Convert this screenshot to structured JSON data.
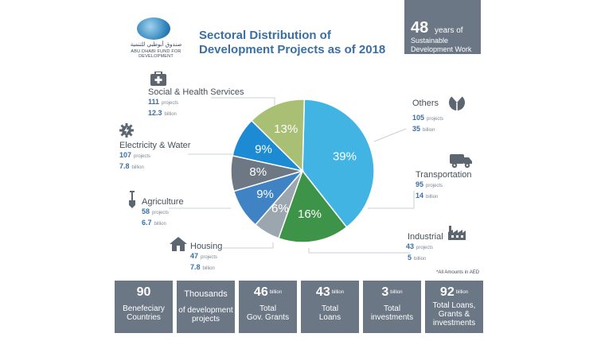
{
  "logo": {
    "arabic_text": "صندوق أبوظبي للتنمية",
    "english_text": "ABU DHABI FUND FOR DEVELOPMENT"
  },
  "title": {
    "line1": "Sectoral Distribution of",
    "line2": "Development Projects as of 2018"
  },
  "years_box": {
    "number": "48",
    "unit": "years of",
    "line1": "Sustainable",
    "line2": "Development Work"
  },
  "chart_data": {
    "type": "pie",
    "title": "Sectoral Distribution of Development Projects as of 2018",
    "slices": [
      {
        "label": "39%",
        "value": 39,
        "color": "#41b4e4"
      },
      {
        "label": "16%",
        "value": 16,
        "color": "#3d9448"
      },
      {
        "label": "6%",
        "value": 6,
        "color": "#9ba6ae"
      },
      {
        "label": "9%",
        "value": 9,
        "color": "#3f83c4"
      },
      {
        "label": "8%",
        "value": 8,
        "color": "#6d7884"
      },
      {
        "label": "9%",
        "value": 9,
        "color": "#1c8bd4"
      },
      {
        "label": "13%",
        "value": 13,
        "color": "#a8bf74"
      }
    ]
  },
  "sectors": {
    "social": {
      "name": "Social & Health Services",
      "projects": "111",
      "projects_unit": "projects",
      "amount": "12.3",
      "amount_unit": "billion"
    },
    "electricity": {
      "name": "Electricity & Water",
      "projects": "107",
      "projects_unit": "projects",
      "amount": "7.8",
      "amount_unit": "billion"
    },
    "agriculture": {
      "name": "Agriculture",
      "projects": "58",
      "projects_unit": "projects",
      "amount": "6.7",
      "amount_unit": "billion"
    },
    "housing": {
      "name": "Housing",
      "projects": "47",
      "projects_unit": "projects",
      "amount": "7.8",
      "amount_unit": "billion"
    },
    "others": {
      "name": "Others",
      "projects": "105",
      "projects_unit": "projects",
      "amount": "35",
      "amount_unit": "billion"
    },
    "transportation": {
      "name": "Transportation",
      "projects": "95",
      "projects_unit": "projects",
      "amount": "14",
      "amount_unit": "billion"
    },
    "industrial": {
      "name": "Industrial",
      "projects": "43",
      "projects_unit": "projects",
      "amount": "5",
      "amount_unit": "billion"
    }
  },
  "note": "*All Amounts in AED",
  "stats": [
    {
      "big": "90",
      "unit": "",
      "label1": "Benefeciary",
      "label2": "Countries"
    },
    {
      "big": "Thousands",
      "unit": "",
      "label1": "of development",
      "label2": "projects"
    },
    {
      "big": "46",
      "unit": "billion",
      "label1": "Total",
      "label2": "Gov. Grants"
    },
    {
      "big": "43",
      "unit": "billion",
      "label1": "Total",
      "label2": "Loans"
    },
    {
      "big": "3",
      "unit": "billion",
      "label1": "Total",
      "label2": "investments"
    },
    {
      "big": "92",
      "unit": "billion",
      "label1": "Total Loans,",
      "label2": "Grants &",
      "label3": "investments"
    }
  ],
  "icons": {
    "social": "medical-kit-icon",
    "electricity": "gear-bolt-icon",
    "agriculture": "shovel-icon",
    "housing": "house-icon",
    "others": "pie-slice-icon",
    "transportation": "truck-icon",
    "industrial": "factory-icon"
  }
}
